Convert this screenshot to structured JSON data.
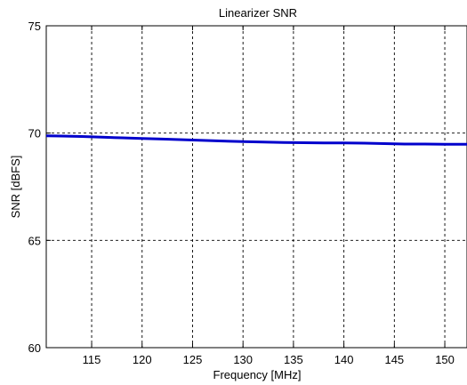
{
  "chart_data": {
    "type": "line",
    "title": "Linearizer SNR",
    "xlabel": "Frequency [MHz]",
    "ylabel": "SNR [dBFS]",
    "xlim": [
      110.5,
      152.2
    ],
    "ylim": [
      60,
      75
    ],
    "xticks": [
      115,
      120,
      125,
      130,
      135,
      140,
      145,
      150
    ],
    "yticks": [
      60,
      65,
      70,
      75
    ],
    "xtick_labels": [
      "115",
      "120",
      "125",
      "130",
      "135",
      "140",
      "145",
      "150"
    ],
    "ytick_labels": [
      "60",
      "65",
      "70",
      "75"
    ],
    "grid": true,
    "legend": "none",
    "series": [
      {
        "color": "#0000cc",
        "x": [
          110.5,
          112,
          114,
          116,
          118,
          120,
          122,
          124,
          126,
          128,
          130,
          132,
          134,
          136,
          138,
          140,
          142,
          144,
          146,
          148,
          150,
          152.2
        ],
        "y": [
          69.87,
          69.86,
          69.84,
          69.81,
          69.78,
          69.75,
          69.72,
          69.69,
          69.66,
          69.63,
          69.6,
          69.58,
          69.56,
          69.55,
          69.54,
          69.54,
          69.53,
          69.51,
          69.49,
          69.49,
          69.48,
          69.48
        ]
      }
    ]
  }
}
